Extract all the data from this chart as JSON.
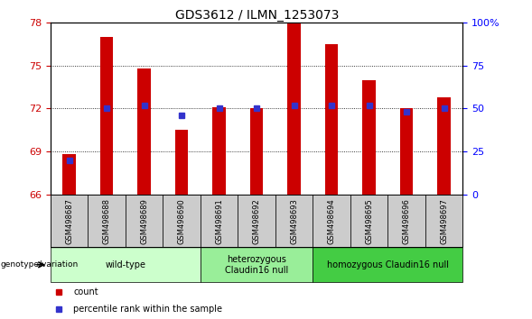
{
  "title": "GDS3612 / ILMN_1253073",
  "samples": [
    "GSM498687",
    "GSM498688",
    "GSM498689",
    "GSM498690",
    "GSM498691",
    "GSM498692",
    "GSM498693",
    "GSM498694",
    "GSM498695",
    "GSM498696",
    "GSM498697"
  ],
  "bar_values": [
    68.8,
    77.0,
    74.8,
    70.5,
    72.1,
    72.0,
    78.0,
    76.5,
    74.0,
    72.0,
    72.8
  ],
  "percentile_values": [
    20,
    50,
    52,
    46,
    50,
    50,
    52,
    52,
    52,
    48,
    50
  ],
  "ylim": [
    66,
    78
  ],
  "right_ylim": [
    0,
    100
  ],
  "yticks_left": [
    66,
    69,
    72,
    75,
    78
  ],
  "yticks_right": [
    0,
    25,
    50,
    75,
    100
  ],
  "ytick_right_labels": [
    "0",
    "25",
    "50",
    "75",
    "100%"
  ],
  "bar_color": "#cc0000",
  "percentile_color": "#3333cc",
  "bg_color": "#ffffff",
  "plot_bg": "#ffffff",
  "group_info": [
    {
      "label": "wild-type",
      "start": 0,
      "end": 3,
      "color": "#ccffcc"
    },
    {
      "label": "heterozygous\nClaudin16 null",
      "start": 4,
      "end": 6,
      "color": "#99ee99"
    },
    {
      "label": "homozygous Claudin16 null",
      "start": 7,
      "end": 10,
      "color": "#44cc44"
    }
  ],
  "legend_items": [
    {
      "label": "count",
      "color": "#cc0000",
      "marker": "s"
    },
    {
      "label": "percentile rank within the sample",
      "color": "#3333cc",
      "marker": "s"
    }
  ],
  "genotype_label": "genotype/variation",
  "bar_width": 0.35,
  "title_fontsize": 10,
  "tick_fontsize": 8,
  "label_fontsize": 7
}
